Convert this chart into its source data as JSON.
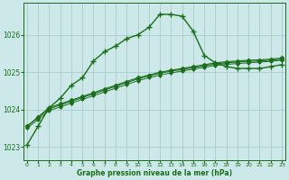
{
  "bg_color": "#cce8e8",
  "grid_color": "#aacccc",
  "line_color": "#1a6e1a",
  "xlabel": "Graphe pression niveau de la mer (hPa)",
  "yticks": [
    1023,
    1024,
    1025,
    1026
  ],
  "xticks": [
    0,
    1,
    2,
    3,
    4,
    5,
    6,
    7,
    8,
    9,
    10,
    11,
    12,
    13,
    14,
    15,
    16,
    17,
    18,
    19,
    20,
    21,
    22,
    23
  ],
  "xlim": [
    -0.3,
    23.3
  ],
  "ylim": [
    1022.65,
    1026.85
  ],
  "series": [
    {
      "x": [
        0,
        1,
        2,
        3,
        4,
        5,
        6,
        7,
        8,
        9,
        10,
        11,
        12,
        13,
        14,
        15,
        16,
        17,
        18,
        19,
        20,
        21,
        22,
        23
      ],
      "y": [
        1023.05,
        1023.55,
        1024.05,
        1024.3,
        1024.65,
        1024.85,
        1025.3,
        1025.55,
        1025.7,
        1025.9,
        1026.0,
        1026.2,
        1026.55,
        1026.55,
        1026.5,
        1026.1,
        1025.45,
        1025.25,
        1025.15,
        1025.1,
        1025.1,
        1025.1,
        1025.15,
        1025.2
      ],
      "marker": "+",
      "markersize": 4,
      "markeredgewidth": 1.0,
      "linewidth": 1.0
    },
    {
      "x": [
        0,
        1,
        2,
        3,
        4,
        5,
        6,
        7,
        8,
        9,
        10,
        11,
        12,
        13,
        14,
        15,
        16,
        17,
        18,
        19,
        20,
        21,
        22,
        23
      ],
      "y": [
        1023.55,
        1023.8,
        1024.05,
        1024.15,
        1024.25,
        1024.35,
        1024.45,
        1024.55,
        1024.65,
        1024.75,
        1024.85,
        1024.92,
        1025.0,
        1025.05,
        1025.1,
        1025.15,
        1025.2,
        1025.25,
        1025.28,
        1025.3,
        1025.32,
        1025.33,
        1025.35,
        1025.38
      ],
      "marker": "D",
      "markersize": 2.5,
      "markeredgewidth": 0.5,
      "linewidth": 0.8
    },
    {
      "x": [
        0,
        1,
        2,
        3,
        4,
        5,
        6,
        7,
        8,
        9,
        10,
        11,
        12,
        13,
        14,
        15,
        16,
        17,
        18,
        19,
        20,
        21,
        22,
        23
      ],
      "y": [
        1023.55,
        1023.78,
        1024.02,
        1024.12,
        1024.22,
        1024.32,
        1024.42,
        1024.52,
        1024.62,
        1024.72,
        1024.82,
        1024.9,
        1024.97,
        1025.03,
        1025.07,
        1025.12,
        1025.17,
        1025.22,
        1025.25,
        1025.27,
        1025.29,
        1025.3,
        1025.32,
        1025.35
      ],
      "marker": "D",
      "markersize": 2.5,
      "markeredgewidth": 0.5,
      "linewidth": 0.8
    },
    {
      "x": [
        0,
        1,
        2,
        3,
        4,
        5,
        6,
        7,
        8,
        9,
        10,
        11,
        12,
        13,
        14,
        15,
        16,
        17,
        18,
        19,
        20,
        21,
        22,
        23
      ],
      "y": [
        1023.5,
        1023.73,
        1023.97,
        1024.07,
        1024.17,
        1024.27,
        1024.37,
        1024.47,
        1024.57,
        1024.67,
        1024.77,
        1024.85,
        1024.92,
        1024.98,
        1025.03,
        1025.08,
        1025.13,
        1025.18,
        1025.21,
        1025.23,
        1025.25,
        1025.27,
        1025.29,
        1025.32
      ],
      "marker": "D",
      "markersize": 2.0,
      "markeredgewidth": 0.5,
      "linewidth": 0.7
    }
  ]
}
